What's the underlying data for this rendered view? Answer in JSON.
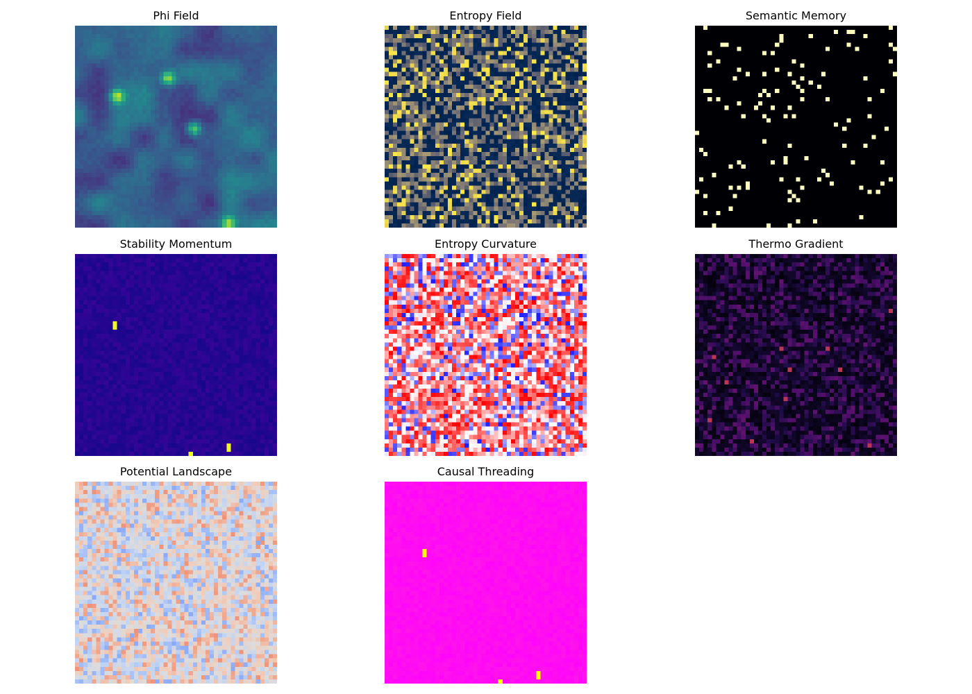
{
  "figure": {
    "grid": {
      "rows": 3,
      "cols": 3
    }
  },
  "chart_data": [
    {
      "type": "heatmap",
      "title": "Phi Field",
      "colormap": "viridis",
      "resolution": 48,
      "pattern": "smooth",
      "seed": 11,
      "hotspots": [
        [
          0.2,
          0.34
        ],
        [
          0.58,
          0.5
        ],
        [
          0.75,
          0.97
        ],
        [
          0.45,
          0.25
        ]
      ]
    },
    {
      "type": "heatmap",
      "title": "Entropy Field",
      "colormap": "cividis",
      "resolution": 48,
      "pattern": "noise",
      "seed": 23,
      "bright_fraction": 0.12
    },
    {
      "type": "heatmap",
      "title": "Semantic Memory",
      "colormap": "magma",
      "resolution": 48,
      "pattern": "sparse",
      "seed": 37,
      "active_fraction": 0.05
    },
    {
      "type": "heatmap",
      "title": "Stability Momentum",
      "colormap": "plasma",
      "resolution": 48,
      "pattern": "low-with-spikes",
      "seed": 41,
      "spikes": [
        [
          0.2,
          0.34
        ],
        [
          0.75,
          0.94
        ],
        [
          0.57,
          0.99
        ]
      ]
    },
    {
      "type": "heatmap",
      "title": "Entropy Curvature",
      "colormap": "bwr",
      "resolution": 48,
      "pattern": "diverging-noise",
      "seed": 53,
      "bias": 0.15
    },
    {
      "type": "heatmap",
      "title": "Thermo Gradient",
      "colormap": "inferno",
      "resolution": 48,
      "pattern": "dark-noise",
      "seed": 61
    },
    {
      "type": "heatmap",
      "title": "Potential Landscape",
      "colormap": "coolwarm",
      "resolution": 48,
      "pattern": "diverging-noise-soft",
      "seed": 73
    },
    {
      "type": "heatmap",
      "title": "Causal Threading",
      "colormap": "spring",
      "resolution": 48,
      "pattern": "low-with-spikes",
      "seed": 41,
      "spikes": [
        [
          0.2,
          0.34
        ],
        [
          0.75,
          0.94
        ],
        [
          0.57,
          0.99
        ]
      ]
    }
  ]
}
